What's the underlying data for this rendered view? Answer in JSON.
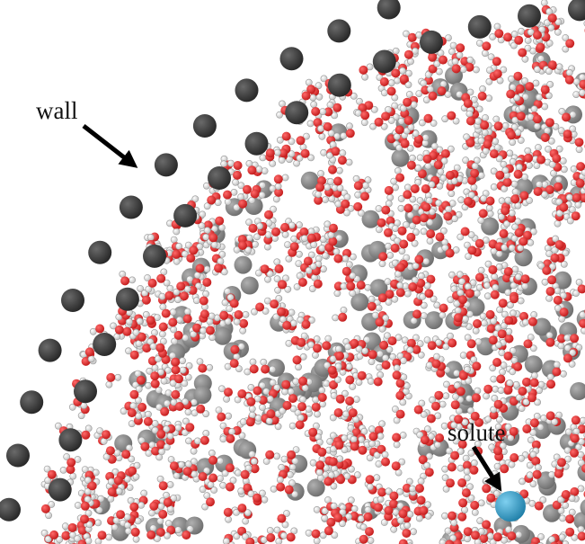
{
  "annotations": [
    {
      "text": "wall"
    },
    {
      "text": "solute"
    }
  ]
}
